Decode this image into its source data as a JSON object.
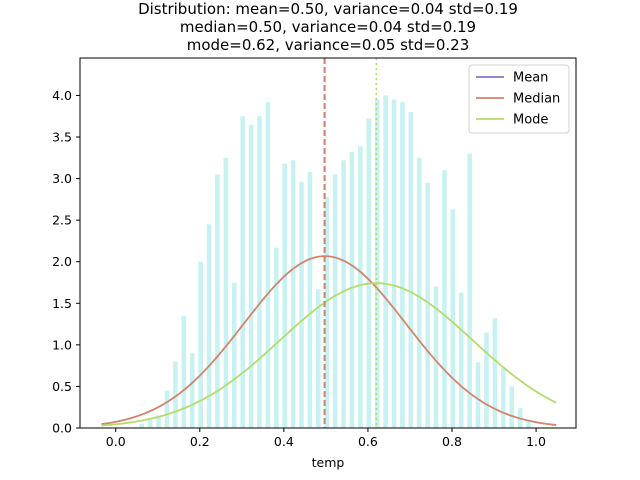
{
  "chart_data": {
    "type": "bar",
    "title_lines": [
      "Distribution: mean=0.50, variance=0.04 std=0.19",
      "median=0.50, variance=0.04 std=0.19",
      "mode=0.62, variance=0.05 std=0.23"
    ],
    "xlabel": "temp",
    "ylabel": "",
    "xlim": [
      -0.085,
      1.095
    ],
    "ylim": [
      0,
      4.45
    ],
    "xticks": [
      0.0,
      0.2,
      0.4,
      0.6,
      0.8,
      1.0
    ],
    "xtick_labels": [
      "0.0",
      "0.2",
      "0.4",
      "0.6",
      "0.8",
      "1.0"
    ],
    "yticks": [
      0.0,
      0.5,
      1.0,
      1.5,
      2.0,
      2.5,
      3.0,
      3.5,
      4.0
    ],
    "ytick_labels": [
      "0.0",
      "0.5",
      "1.0",
      "1.5",
      "2.0",
      "2.5",
      "3.0",
      "3.5",
      "4.0"
    ],
    "grid": false,
    "legend_position": "top-right",
    "histogram": {
      "color": "#c8f2f2",
      "bin_width": 0.0199,
      "x": [
        0.062,
        0.082,
        0.102,
        0.122,
        0.142,
        0.162,
        0.182,
        0.202,
        0.222,
        0.242,
        0.262,
        0.282,
        0.302,
        0.322,
        0.342,
        0.362,
        0.382,
        0.402,
        0.422,
        0.442,
        0.462,
        0.482,
        0.502,
        0.522,
        0.542,
        0.562,
        0.582,
        0.602,
        0.622,
        0.642,
        0.662,
        0.682,
        0.702,
        0.722,
        0.742,
        0.762,
        0.782,
        0.802,
        0.822,
        0.842,
        0.862,
        0.882,
        0.902,
        0.922,
        0.942,
        0.962,
        0.982
      ],
      "values": [
        0.05,
        0.1,
        0.15,
        0.45,
        0.8,
        1.35,
        0.9,
        2.0,
        2.45,
        3.05,
        3.25,
        1.75,
        3.75,
        3.65,
        3.75,
        3.92,
        2.17,
        3.18,
        3.22,
        2.96,
        3.08,
        1.67,
        2.78,
        3.05,
        3.22,
        3.32,
        3.39,
        3.72,
        3.95,
        4.0,
        3.95,
        3.92,
        3.8,
        3.25,
        2.95,
        1.7,
        3.1,
        2.63,
        1.63,
        3.3,
        0.79,
        1.15,
        1.32,
        0.72,
        0.5,
        0.24,
        0.08
      ]
    },
    "series": [
      {
        "name": "Mean",
        "kind": "vline",
        "x": 0.4965,
        "color": "#8c70c8",
        "dash": "dashed"
      },
      {
        "name": "Median",
        "kind": "curve-and-vline",
        "vline_x": 0.4975,
        "mu": 0.4975,
        "sigma": 0.193,
        "color": "#d4836c",
        "dash": "dashed",
        "curve_x_range": [
          -0.034,
          1.048
        ]
      },
      {
        "name": "Mode",
        "kind": "curve-and-vline",
        "vline_x": 0.62,
        "mu": 0.62,
        "sigma": 0.229,
        "color": "#b5dc6a",
        "dash": "dotted",
        "curve_x_range": [
          -0.034,
          1.048
        ]
      }
    ],
    "legend": [
      "Mean",
      "Median",
      "Mode"
    ]
  }
}
